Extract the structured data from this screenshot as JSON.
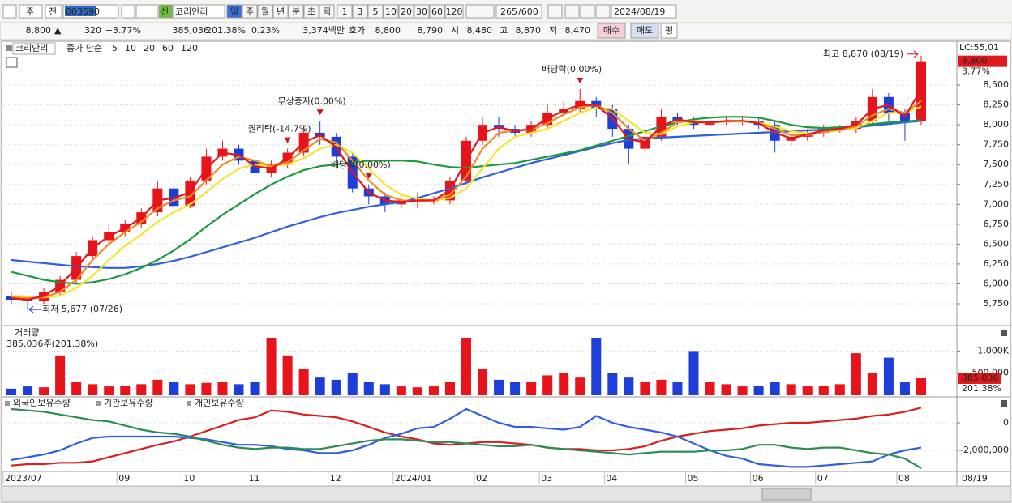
{
  "toolbar": {
    "period_type": "주",
    "prev": "전",
    "code": "003690",
    "credit": "신",
    "name": "코리안리",
    "intervals": [
      "일",
      "주",
      "월",
      "년",
      "분",
      "초",
      "틱",
      "1",
      "3",
      "5",
      "10",
      "20",
      "30",
      "60",
      "120"
    ],
    "count": "265",
    "max_count": "/600",
    "date": "2024/08/19"
  },
  "info": {
    "price": "8,800",
    "arrow": "▲",
    "change": "320",
    "change_rate": "+3.77%",
    "volume": "385,036",
    "volume_rate": "201.38%",
    "turnover": "0.23%",
    "amount": "3,374백만",
    "quote_label": "호가",
    "ask": "8,800",
    "bid": "8,790",
    "open_label": "시",
    "open": "8,480",
    "high_label": "고",
    "high": "8,870",
    "low_label": "저",
    "low": "8,470",
    "buy": "매수",
    "sell": "매도",
    "avg": "평"
  },
  "chart_data": [
    {
      "type": "candlestick",
      "title": "코리안리",
      "legend_title": "종가 단순",
      "up_color": "#e8141b",
      "down_color": "#1d3fd8",
      "open": [
        5850,
        5800,
        5780,
        5900,
        6050,
        6350,
        6550,
        6650,
        6750,
        6900,
        7200,
        6980,
        7300,
        7600,
        7700,
        7550,
        7400,
        7500,
        7650,
        7900,
        7850,
        7600,
        7200,
        7100,
        7000,
        7050,
        7050,
        7050,
        7300,
        7800,
        8000,
        7950,
        7900,
        8000,
        8150,
        8200,
        8300,
        8200,
        7950,
        7700,
        7850,
        8100,
        8050,
        8000,
        8050,
        8050,
        8050,
        8000,
        7800,
        7850,
        7900,
        7950,
        7950,
        8050,
        8350,
        8150,
        8050
      ],
      "high": [
        5900,
        5850,
        5950,
        6100,
        6400,
        6600,
        6750,
        6800,
        6950,
        7300,
        7250,
        7350,
        7700,
        7800,
        7750,
        7600,
        7550,
        7700,
        8000,
        8050,
        7900,
        7650,
        7250,
        7150,
        7100,
        7150,
        7100,
        7350,
        7850,
        8100,
        8100,
        8000,
        8050,
        8250,
        8300,
        8450,
        8350,
        8250,
        8000,
        7900,
        8200,
        8150,
        8100,
        8100,
        8100,
        8100,
        8100,
        8050,
        7900,
        7950,
        8000,
        8000,
        8100,
        8450,
        8400,
        8200,
        8870
      ],
      "low": [
        5750,
        5677,
        5750,
        5850,
        6000,
        6300,
        6500,
        6600,
        6700,
        6850,
        6900,
        6950,
        7250,
        7550,
        7500,
        7350,
        7350,
        7450,
        7600,
        7750,
        7550,
        7150,
        7000,
        6900,
        6950,
        6950,
        7000,
        7000,
        7250,
        7750,
        7850,
        7850,
        7850,
        7950,
        8100,
        8150,
        8100,
        7850,
        7500,
        7650,
        7800,
        8000,
        7950,
        7950,
        8000,
        8000,
        7950,
        7650,
        7750,
        7800,
        7850,
        7900,
        7900,
        8000,
        8050,
        7800,
        8000
      ],
      "close": [
        5800,
        5780,
        5900,
        6050,
        6350,
        6550,
        6650,
        6750,
        6900,
        7200,
        6980,
        7300,
        7600,
        7700,
        7550,
        7400,
        7500,
        7650,
        7900,
        7850,
        7600,
        7200,
        7100,
        7000,
        7050,
        7050,
        7050,
        7300,
        7800,
        8000,
        7950,
        7900,
        8000,
        8150,
        8200,
        8300,
        8200,
        7950,
        7700,
        7850,
        8100,
        8050,
        8000,
        8050,
        8050,
        8050,
        8000,
        7800,
        7850,
        7900,
        7950,
        7950,
        8050,
        8350,
        8150,
        8050,
        8800
      ],
      "series": [
        {
          "name": "5",
          "color": "#e8141b",
          "values": [
            5820,
            5800,
            5850,
            5980,
            6200,
            6450,
            6600,
            6700,
            6830,
            7050,
            7080,
            7150,
            7450,
            7650,
            7620,
            7480,
            7450,
            7580,
            7780,
            7870,
            7720,
            7400,
            7150,
            7050,
            7030,
            7050,
            7050,
            7180,
            7550,
            7900,
            7970,
            7920,
            7950,
            8080,
            8180,
            8250,
            8250,
            8080,
            7820,
            7780,
            7980,
            8070,
            8030,
            8030,
            8050,
            8050,
            8020,
            7900,
            7830,
            7880,
            7930,
            7950,
            8000,
            8200,
            8250,
            8100,
            8450
          ]
        },
        {
          "name": "10",
          "color": "#f08a24",
          "values": [
            5830,
            5820,
            5830,
            5900,
            6050,
            6300,
            6500,
            6650,
            6780,
            6950,
            7050,
            7100,
            7300,
            7500,
            7600,
            7550,
            7480,
            7530,
            7680,
            7820,
            7780,
            7550,
            7300,
            7120,
            7050,
            7040,
            7050,
            7120,
            7350,
            7700,
            7900,
            7930,
            7940,
            8020,
            8130,
            8220,
            8250,
            8150,
            7950,
            7800,
            7900,
            8030,
            8050,
            8030,
            8040,
            8050,
            8030,
            7950,
            7870,
            7870,
            7910,
            7940,
            7980,
            8120,
            8200,
            8150,
            8300
          ]
        },
        {
          "name": "20",
          "color": "#f5e52a",
          "values": [
            5850,
            5840,
            5830,
            5850,
            5950,
            6100,
            6300,
            6480,
            6620,
            6780,
            6900,
            7000,
            7150,
            7320,
            7450,
            7500,
            7480,
            7500,
            7580,
            7700,
            7750,
            7650,
            7450,
            7250,
            7120,
            7070,
            7050,
            7080,
            7200,
            7450,
            7700,
            7850,
            7900,
            7950,
            8050,
            8150,
            8220,
            8200,
            8050,
            7900,
            7880,
            7980,
            8030,
            8030,
            8040,
            8040,
            8030,
            7980,
            7920,
            7890,
            7910,
            7930,
            7960,
            8050,
            8150,
            8150,
            8230
          ]
        },
        {
          "name": "60",
          "color": "#1a9a3a",
          "values": [
            6150,
            6100,
            6050,
            6020,
            6000,
            6020,
            6060,
            6120,
            6200,
            6300,
            6420,
            6560,
            6720,
            6870,
            7000,
            7130,
            7250,
            7350,
            7430,
            7480,
            7500,
            7530,
            7550,
            7550,
            7550,
            7540,
            7500,
            7470,
            7460,
            7480,
            7500,
            7520,
            7560,
            7600,
            7640,
            7680,
            7740,
            7800,
            7860,
            7920,
            7980,
            8030,
            8070,
            8090,
            8100,
            8100,
            8090,
            8050,
            8000,
            7970,
            7960,
            7970,
            7990,
            8010,
            8030,
            8040,
            8060
          ]
        },
        {
          "name": "120",
          "color": "#2f5fe0",
          "values": [
            6300,
            6280,
            6260,
            6240,
            6220,
            6210,
            6200,
            6200,
            6220,
            6250,
            6290,
            6340,
            6400,
            6460,
            6520,
            6580,
            6650,
            6720,
            6780,
            6840,
            6890,
            6930,
            6970,
            7000,
            7030,
            7080,
            7140,
            7200,
            7270,
            7340,
            7400,
            7460,
            7520,
            7570,
            7620,
            7670,
            7720,
            7770,
            7810,
            7830,
            7840,
            7850,
            7860,
            7870,
            7880,
            7890,
            7900,
            7910,
            7920,
            7930,
            7940,
            7950,
            7970,
            7990,
            8010,
            8030,
            8050
          ]
        }
      ],
      "ylim": [
        5495,
        9041
      ],
      "yticks": [
        {
          "value": 5750,
          "label": "5,750"
        },
        {
          "value": 6000,
          "label": "6,000"
        },
        {
          "value": 6250,
          "label": "6,250"
        },
        {
          "value": 6500,
          "label": "6,500"
        },
        {
          "value": 6750,
          "label": "6,750"
        },
        {
          "value": 7000,
          "label": "7,000"
        },
        {
          "value": 7250,
          "label": "7,250"
        },
        {
          "value": 7500,
          "label": "7,500"
        },
        {
          "value": 7750,
          "label": "7,750"
        },
        {
          "value": 8000,
          "label": "8,000"
        },
        {
          "value": 8250,
          "label": "8,250"
        },
        {
          "value": 8500,
          "label": "8,500"
        }
      ],
      "grid": true,
      "events": [
        {
          "label": "권리락(-14.7%)",
          "index": 17
        },
        {
          "label": "무상증자(0.00%)",
          "index": 19
        },
        {
          "label": "배당락(0.00%)",
          "index": 22
        },
        {
          "label": "배당락(0.00%)",
          "index": 35
        }
      ],
      "high_marker": {
        "label": "최고 8,870 (08/19)",
        "index": 56
      },
      "low_marker": {
        "label": "최저 5,677 (07/26)",
        "index": 1
      },
      "lc_label": "LC:55,01",
      "last_label": "8,800",
      "last_change": "3.77%"
    },
    {
      "type": "bar",
      "title": "거래량",
      "subtitle": "385,036주(201.38%)",
      "values": [
        150000,
        200000,
        180000,
        900000,
        300000,
        250000,
        200000,
        220000,
        250000,
        350000,
        300000,
        250000,
        280000,
        300000,
        250000,
        300000,
        1300000,
        900000,
        600000,
        400000,
        350000,
        500000,
        300000,
        250000,
        200000,
        180000,
        200000,
        300000,
        1300000,
        600000,
        350000,
        300000,
        300000,
        450000,
        500000,
        400000,
        1300000,
        500000,
        400000,
        300000,
        350000,
        300000,
        1000000,
        300000,
        250000,
        200000,
        220000,
        300000,
        250000,
        200000,
        220000,
        250000,
        950000,
        500000,
        850000,
        300000,
        385036
      ],
      "up_color": "#e8141b",
      "down_color": "#1d3fd8",
      "ylim": [
        0,
        1520000
      ],
      "yticks": [
        {
          "value": 500000,
          "label": "500,000"
        },
        {
          "value": 1000000,
          "label": "1,000K"
        }
      ],
      "grid": true,
      "last_label": "385,036",
      "last_change": "201.38%"
    },
    {
      "type": "line",
      "categories": [
        "2023/07",
        null,
        null,
        null,
        null,
        null,
        null,
        "09",
        null,
        null,
        null,
        "10",
        null,
        null,
        null,
        "11",
        null,
        null,
        null,
        null,
        "12",
        null,
        null,
        null,
        "2024/01",
        null,
        null,
        null,
        null,
        "02",
        null,
        null,
        null,
        "03",
        null,
        null,
        null,
        "04",
        null,
        null,
        null,
        null,
        "05",
        null,
        null,
        null,
        "06",
        null,
        null,
        null,
        "07",
        null,
        null,
        null,
        null,
        "08",
        null
      ],
      "series": [
        {
          "name": "외국인보유수량",
          "color": "#d91f1f",
          "values": [
            -3100000,
            -3000000,
            -3000000,
            -2900000,
            -2900000,
            -2800000,
            -2500000,
            -2200000,
            -1900000,
            -1600000,
            -1350000,
            -1000000,
            -600000,
            -200000,
            200000,
            400000,
            900000,
            800000,
            600000,
            500000,
            400000,
            100000,
            -300000,
            -700000,
            -1000000,
            -1200000,
            -1500000,
            -1600000,
            -1500000,
            -1400000,
            -1400000,
            -1500000,
            -1600000,
            -1800000,
            -1900000,
            -1900000,
            -2000000,
            -2000000,
            -1900000,
            -1700000,
            -1300000,
            -1000000,
            -800000,
            -600000,
            -500000,
            -400000,
            -200000,
            -100000,
            0,
            0,
            100000,
            200000,
            300000,
            500000,
            600000,
            800000,
            1100000
          ]
        },
        {
          "name": "기관보유수량",
          "color": "#2f5fe0",
          "values": [
            -2700000,
            -2500000,
            -2300000,
            -2000000,
            -1500000,
            -1100000,
            -1000000,
            -1000000,
            -1000000,
            -1000000,
            -1000000,
            -1100000,
            -1200000,
            -1400000,
            -1600000,
            -1600000,
            -1700000,
            -1900000,
            -2000000,
            -2200000,
            -2200000,
            -2000000,
            -1600000,
            -1100000,
            -800000,
            -400000,
            -300000,
            300000,
            1000000,
            500000,
            0,
            -300000,
            -300000,
            -400000,
            -500000,
            -300000,
            500000,
            0,
            -300000,
            -500000,
            -700000,
            -1000000,
            -1500000,
            -2000000,
            -2400000,
            -2600000,
            -3000000,
            -3100000,
            -3200000,
            -3200000,
            -3100000,
            -3000000,
            -2900000,
            -2800000,
            -2300000,
            -2000000,
            -1800000
          ]
        },
        {
          "name": "개인보유수량",
          "color": "#2e8b57",
          "values": [
            1000000,
            900000,
            800000,
            600000,
            400000,
            200000,
            100000,
            -200000,
            -500000,
            -700000,
            -800000,
            -1000000,
            -1300000,
            -1600000,
            -1800000,
            -1900000,
            -1800000,
            -1800000,
            -1900000,
            -1900000,
            -1700000,
            -1500000,
            -1300000,
            -1200000,
            -1200000,
            -1300000,
            -1400000,
            -1400000,
            -1500000,
            -1600000,
            -1700000,
            -1700000,
            -1600000,
            -1800000,
            -1900000,
            -2000000,
            -2100000,
            -2200000,
            -2300000,
            -2200000,
            -2100000,
            -2100000,
            -2100000,
            -2000000,
            -2000000,
            -1900000,
            -1600000,
            -1600000,
            -1800000,
            -1900000,
            -1800000,
            -1800000,
            -2000000,
            -2200000,
            -2300000,
            -2600000,
            -3300000
          ]
        }
      ],
      "ylim": [
        -3412000,
        1765000
      ],
      "yticks": [
        0,
        {
          "value": -2000000,
          "label": "-2,000,000"
        }
      ],
      "grid": true,
      "cursor_label": "08/19"
    }
  ]
}
